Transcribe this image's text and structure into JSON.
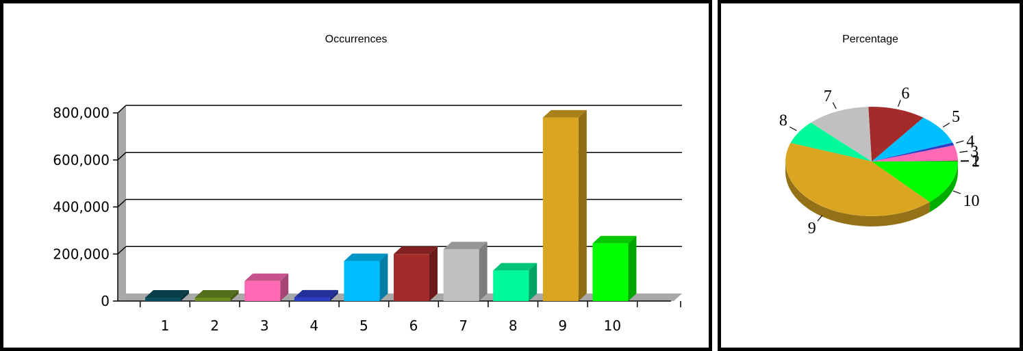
{
  "chart_data": [
    {
      "type": "bar",
      "title": "Occurrences",
      "categories": [
        "1",
        "2",
        "3",
        "4",
        "5",
        "6",
        "7",
        "8",
        "9",
        "10"
      ],
      "values": [
        2000,
        3000,
        85000,
        15000,
        170000,
        200000,
        220000,
        130000,
        780000,
        245000
      ],
      "colors": [
        "#0b4f5c",
        "#6b8e23",
        "#ff69b4",
        "#2c3fc4",
        "#00bfff",
        "#a52a2a",
        "#c0c0c0",
        "#00fa9a",
        "#daa520",
        "#00ff00"
      ],
      "ylim": [
        0,
        800000
      ],
      "yticks": [
        "0",
        "200,000",
        "400,000",
        "600,000",
        "800,000"
      ],
      "grid": true,
      "style": "3d"
    },
    {
      "type": "pie",
      "title": "Percentage",
      "labels": [
        "1",
        "2",
        "3",
        "4",
        "5",
        "6",
        "7",
        "8",
        "9",
        "10"
      ],
      "values": [
        0.1,
        0.2,
        4.4,
        0.8,
        9.0,
        10.6,
        11.6,
        6.9,
        41.4,
        13.0
      ],
      "colors": [
        "#0b4f5c",
        "#6b8e23",
        "#ff69b4",
        "#2c3fc4",
        "#00bfff",
        "#a52a2a",
        "#c0c0c0",
        "#00fa9a",
        "#daa520",
        "#00ff00"
      ],
      "style": "3d"
    }
  ]
}
